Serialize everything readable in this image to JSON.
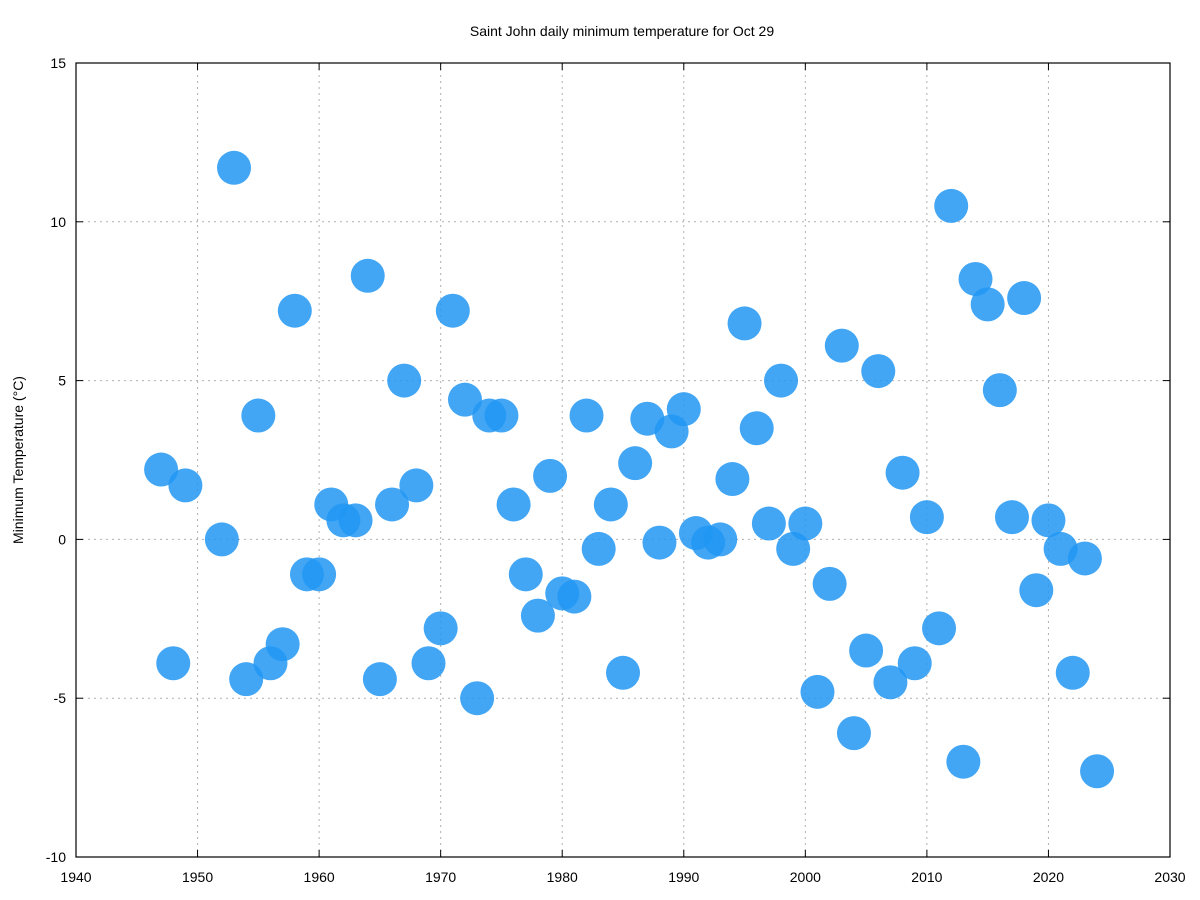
{
  "chart_data": {
    "type": "scatter",
    "title": "Saint John daily minimum temperature for Oct 29",
    "xlabel": "",
    "ylabel": "Minimum Temperature (°C)",
    "xlim": [
      1940,
      2030
    ],
    "ylim": [
      -10,
      15
    ],
    "xticks": [
      1940,
      1950,
      1960,
      1970,
      1980,
      1990,
      2000,
      2010,
      2020,
      2030
    ],
    "yticks": [
      -10,
      -5,
      0,
      5,
      10,
      15
    ],
    "grid": true,
    "legend": "none",
    "marker_color": "#2196f3",
    "points": [
      {
        "x": 1947,
        "y": 2.2
      },
      {
        "x": 1948,
        "y": -3.9
      },
      {
        "x": 1949,
        "y": 1.7
      },
      {
        "x": 1952,
        "y": 0.0
      },
      {
        "x": 1953,
        "y": 11.7
      },
      {
        "x": 1954,
        "y": -4.4
      },
      {
        "x": 1955,
        "y": 3.9
      },
      {
        "x": 1956,
        "y": -3.9
      },
      {
        "x": 1957,
        "y": -3.3
      },
      {
        "x": 1958,
        "y": 7.2
      },
      {
        "x": 1959,
        "y": -1.1
      },
      {
        "x": 1960,
        "y": -1.1
      },
      {
        "x": 1961,
        "y": 1.1
      },
      {
        "x": 1962,
        "y": 0.6
      },
      {
        "x": 1963,
        "y": 0.6
      },
      {
        "x": 1964,
        "y": 8.3
      },
      {
        "x": 1965,
        "y": -4.4
      },
      {
        "x": 1966,
        "y": 1.1
      },
      {
        "x": 1967,
        "y": 5.0
      },
      {
        "x": 1968,
        "y": 1.7
      },
      {
        "x": 1969,
        "y": -3.9
      },
      {
        "x": 1970,
        "y": -2.8
      },
      {
        "x": 1971,
        "y": 7.2
      },
      {
        "x": 1972,
        "y": 4.4
      },
      {
        "x": 1973,
        "y": -5.0
      },
      {
        "x": 1974,
        "y": 3.9
      },
      {
        "x": 1975,
        "y": 3.9
      },
      {
        "x": 1976,
        "y": 1.1
      },
      {
        "x": 1977,
        "y": -1.1
      },
      {
        "x": 1978,
        "y": -2.4
      },
      {
        "x": 1979,
        "y": 2.0
      },
      {
        "x": 1980,
        "y": -1.7
      },
      {
        "x": 1981,
        "y": -1.8
      },
      {
        "x": 1982,
        "y": 3.9
      },
      {
        "x": 1983,
        "y": -0.3
      },
      {
        "x": 1984,
        "y": 1.1
      },
      {
        "x": 1985,
        "y": -4.2
      },
      {
        "x": 1986,
        "y": 2.4
      },
      {
        "x": 1987,
        "y": 3.8
      },
      {
        "x": 1988,
        "y": -0.1
      },
      {
        "x": 1989,
        "y": 3.4
      },
      {
        "x": 1990,
        "y": 4.1
      },
      {
        "x": 1991,
        "y": 0.2
      },
      {
        "x": 1992,
        "y": -0.1
      },
      {
        "x": 1993,
        "y": 0.0
      },
      {
        "x": 1994,
        "y": 1.9
      },
      {
        "x": 1995,
        "y": 6.8
      },
      {
        "x": 1996,
        "y": 3.5
      },
      {
        "x": 1997,
        "y": 0.5
      },
      {
        "x": 1998,
        "y": 5.0
      },
      {
        "x": 1999,
        "y": -0.3
      },
      {
        "x": 2000,
        "y": 0.5
      },
      {
        "x": 2001,
        "y": -4.8
      },
      {
        "x": 2002,
        "y": -1.4
      },
      {
        "x": 2003,
        "y": 6.1
      },
      {
        "x": 2004,
        "y": -6.1
      },
      {
        "x": 2005,
        "y": -3.5
      },
      {
        "x": 2006,
        "y": 5.3
      },
      {
        "x": 2007,
        "y": -4.5
      },
      {
        "x": 2008,
        "y": 2.1
      },
      {
        "x": 2009,
        "y": -3.9
      },
      {
        "x": 2010,
        "y": 0.7
      },
      {
        "x": 2011,
        "y": -2.8
      },
      {
        "x": 2012,
        "y": 10.5
      },
      {
        "x": 2013,
        "y": -7.0
      },
      {
        "x": 2014,
        "y": 8.2
      },
      {
        "x": 2015,
        "y": 7.4
      },
      {
        "x": 2016,
        "y": 4.7
      },
      {
        "x": 2017,
        "y": 0.7
      },
      {
        "x": 2018,
        "y": 7.6
      },
      {
        "x": 2019,
        "y": -1.6
      },
      {
        "x": 2020,
        "y": 0.6
      },
      {
        "x": 2021,
        "y": -0.3
      },
      {
        "x": 2022,
        "y": -4.2
      },
      {
        "x": 2023,
        "y": -0.6
      },
      {
        "x": 2024,
        "y": -7.3
      }
    ]
  }
}
